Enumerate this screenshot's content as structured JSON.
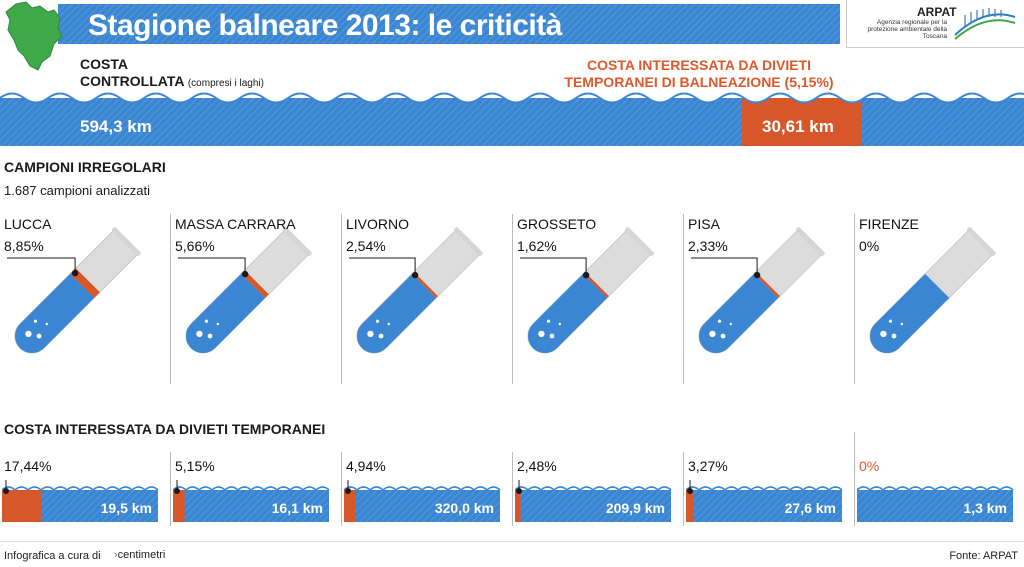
{
  "header": {
    "title": "Stagione balneare 2013: le criticità",
    "logo_name": "ARPAT",
    "logo_subtitle": "Agenzia regionale per la protezione ambientale della Toscana"
  },
  "colors": {
    "blue": "#3a86d2",
    "orange": "#d8572a",
    "dark": "#1a1a1a"
  },
  "coast_summary": {
    "label_line1": "COSTA",
    "label_line2": "CONTROLLATA",
    "label_note": "(compresi i laghi)",
    "banned_line1": "COSTA INTERESSATA DA DIVIETI",
    "banned_line2": "TEMPORANEI DI BALNEAZIONE (5,15%)",
    "total_km": "594,3 km",
    "banned_km": "30,61 km"
  },
  "samples": {
    "title": "CAMPIONI IRREGOLARI",
    "subtitle": "1.687 campioni analizzati"
  },
  "coast_section": {
    "title": "COSTA INTERESSATA DA DIVIETI TEMPORANEI"
  },
  "footer": {
    "credit": "Infografica a cura di",
    "brand": "centimetri",
    "source": "Fonte: ARPAT"
  },
  "chart_data": [
    {
      "type": "bar",
      "title": "CAMPIONI IRREGOLARI",
      "categories": [
        "LUCCA",
        "MASSA CARRARA",
        "LIVORNO",
        "GROSSETO",
        "PISA",
        "FIRENZE"
      ],
      "labels": [
        "8,85%",
        "5,66%",
        "2,54%",
        "1,62%",
        "2,33%",
        "0%"
      ],
      "values": [
        8.85,
        5.66,
        2.54,
        1.62,
        2.33,
        0
      ]
    },
    {
      "type": "bar",
      "title": "COSTA INTERESSATA DA DIVIETI TEMPORANEI",
      "categories": [
        "LUCCA",
        "MASSA CARRARA",
        "LIVORNO",
        "GROSSETO",
        "PISA",
        "FIRENZE"
      ],
      "labels": [
        "17,44%",
        "5,15%",
        "4,94%",
        "2,48%",
        "3,27%",
        "0%"
      ],
      "values": [
        17.44,
        5.15,
        4.94,
        2.48,
        3.27,
        0
      ],
      "km_labels": [
        "19,5 km",
        "16,1 km",
        "320,0 km",
        "209,9 km",
        "27,6 km",
        "1,3 km"
      ],
      "km": [
        19.5,
        16.1,
        320.0,
        209.9,
        27.6,
        1.3
      ]
    }
  ]
}
